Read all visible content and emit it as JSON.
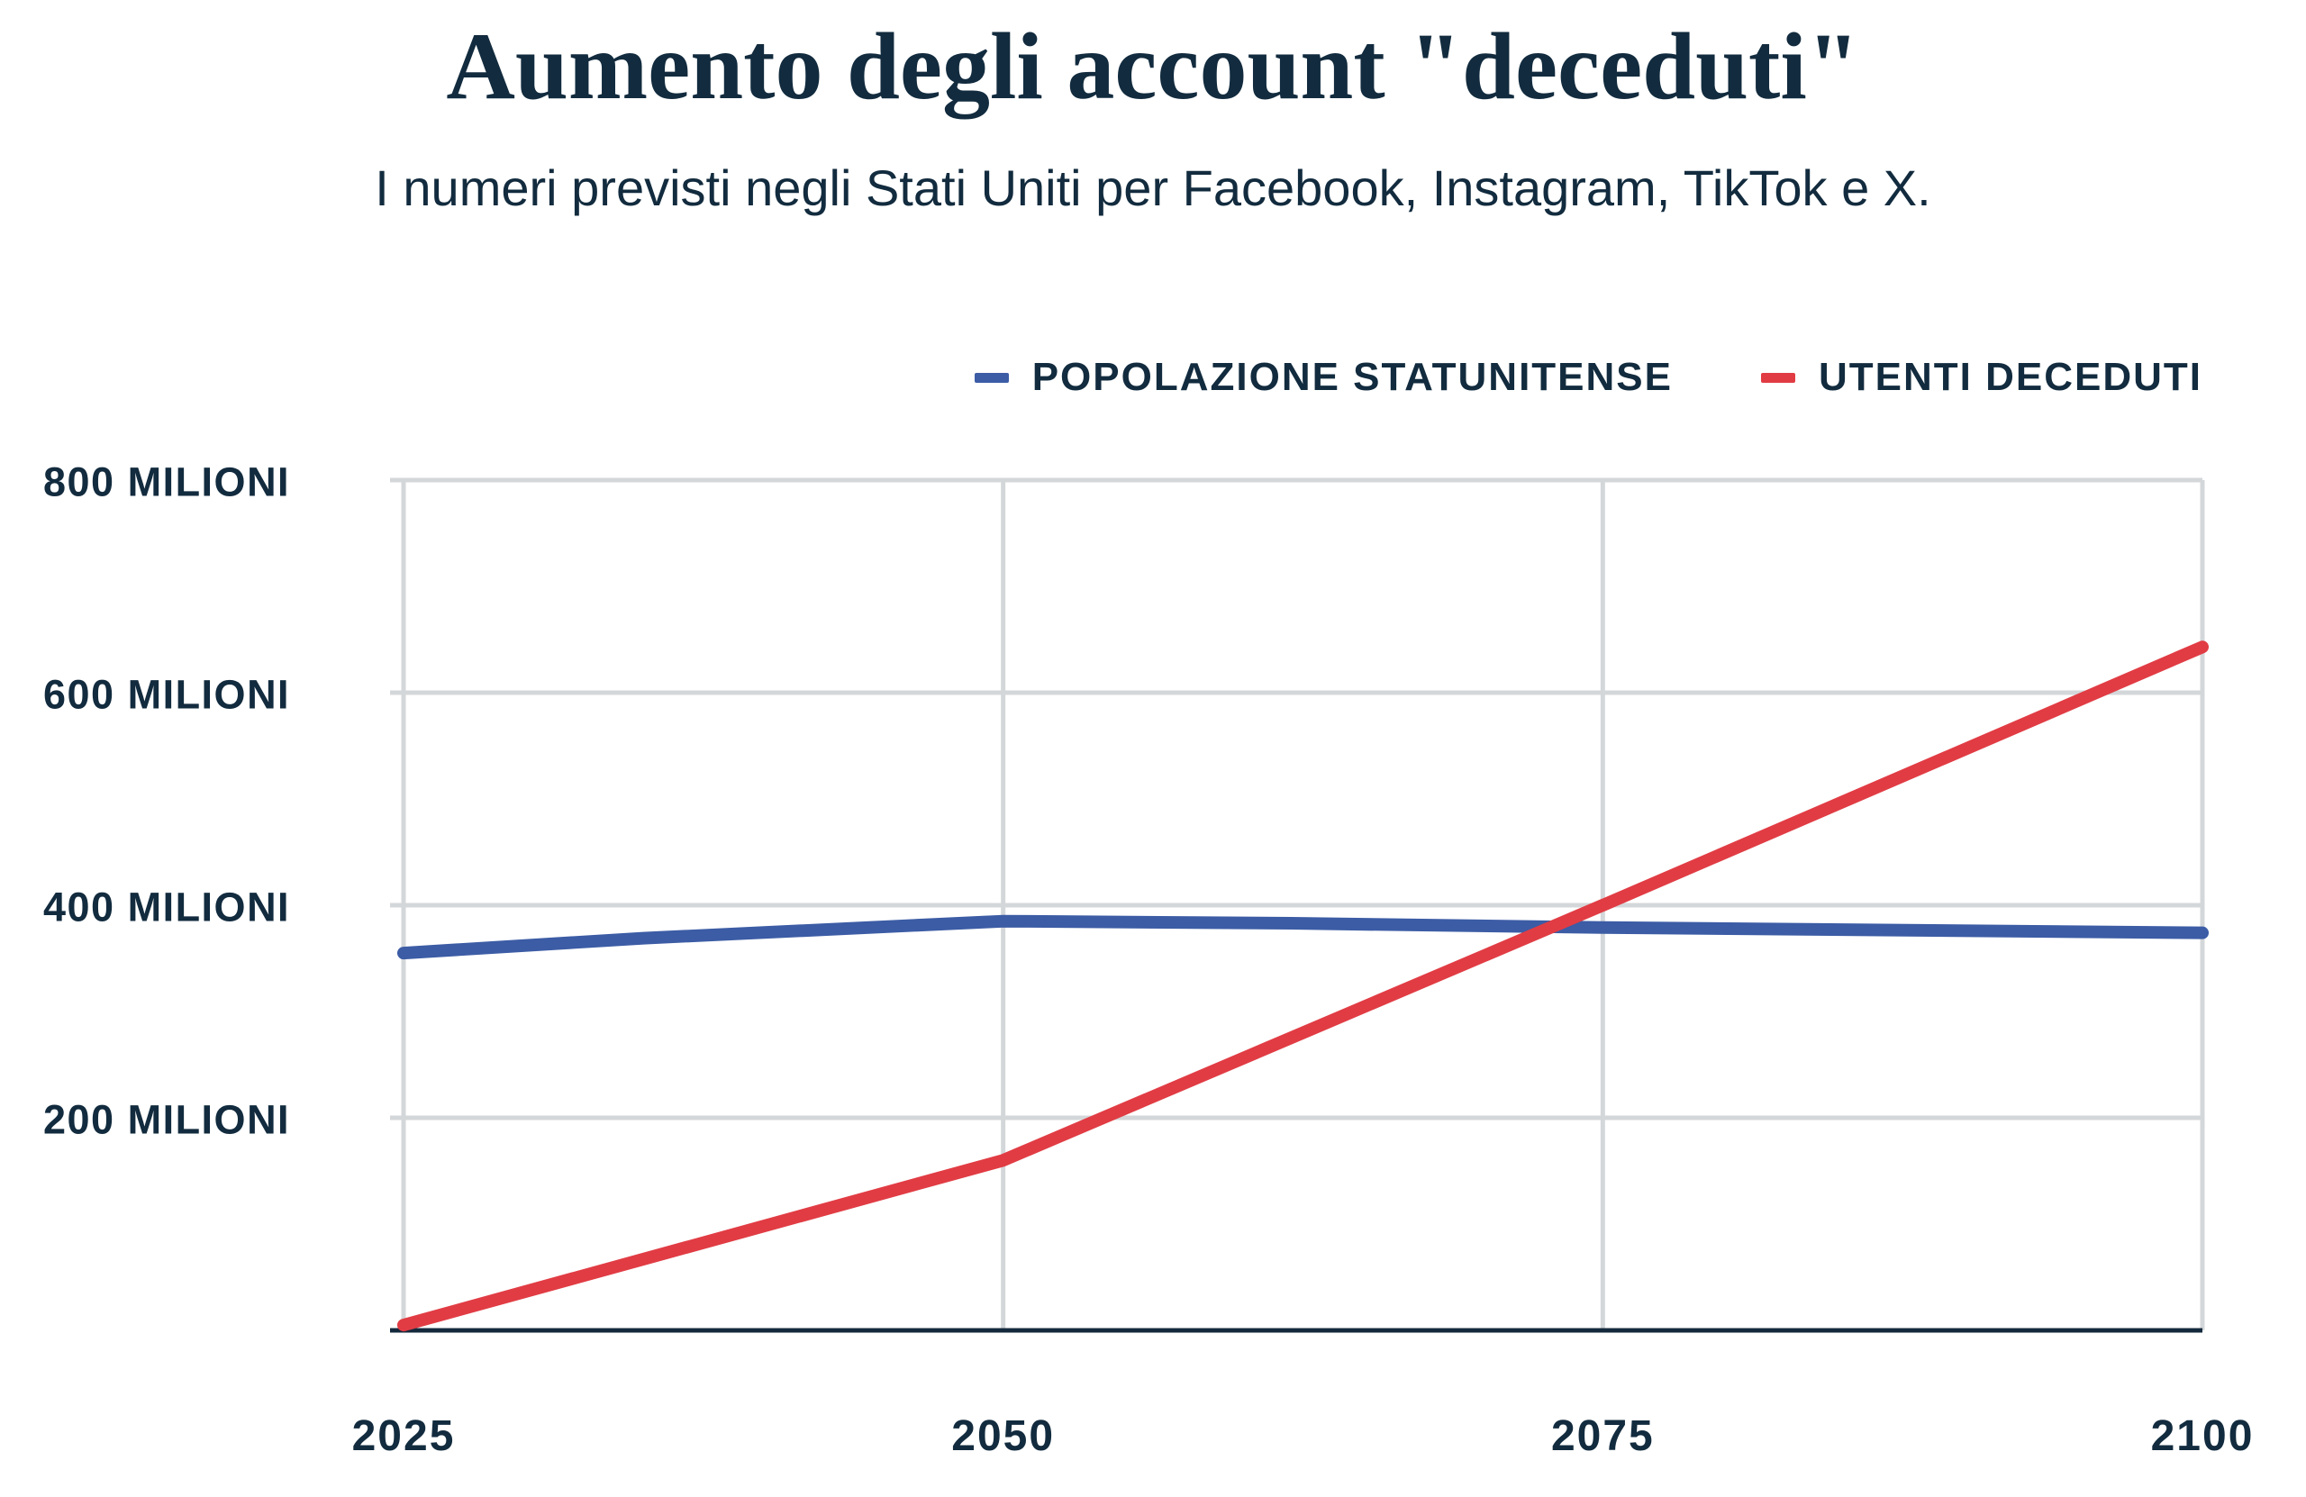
{
  "page": {
    "background": "#FFFFFF"
  },
  "chart_data": {
    "type": "line",
    "title": "Aumento degli account \"deceduti\"",
    "subtitle": "I numeri previsti negli Stati Uniti per Facebook, Instagram, TikTok e X.",
    "xlabel": "",
    "ylabel": "",
    "y_unit": "milioni",
    "xlim": [
      2025,
      2100
    ],
    "ylim": [
      0,
      800
    ],
    "grid": true,
    "legend_position": "top-right",
    "x_ticks": [
      {
        "value": 2025,
        "label": "2025"
      },
      {
        "value": 2050,
        "label": "2050"
      },
      {
        "value": 2075,
        "label": "2075"
      },
      {
        "value": 2100,
        "label": "2100"
      }
    ],
    "y_ticks": [
      {
        "value": 800,
        "label": "800 MILIONI"
      },
      {
        "value": 600,
        "label": "600 MILIONI"
      },
      {
        "value": 400,
        "label": "400 MILIONI"
      },
      {
        "value": 200,
        "label": "200 MILIONI"
      }
    ],
    "series": [
      {
        "name": "POPOLAZIONE STATUNITENSE",
        "color": "#3C5CA5",
        "points": [
          [
            2025,
            355
          ],
          [
            2035,
            369
          ],
          [
            2050,
            385
          ],
          [
            2062,
            383
          ],
          [
            2075,
            379
          ],
          [
            2100,
            374
          ]
        ]
      },
      {
        "name": "UTENTI DECEDUTI",
        "color": "#E13C44",
        "points": [
          [
            2025,
            5
          ],
          [
            2050,
            160
          ],
          [
            2075,
            400
          ],
          [
            2100,
            643
          ]
        ]
      }
    ],
    "colors": {
      "text": "#122B3E",
      "grid": "#D4D7D9",
      "axis": "#14293C"
    }
  }
}
